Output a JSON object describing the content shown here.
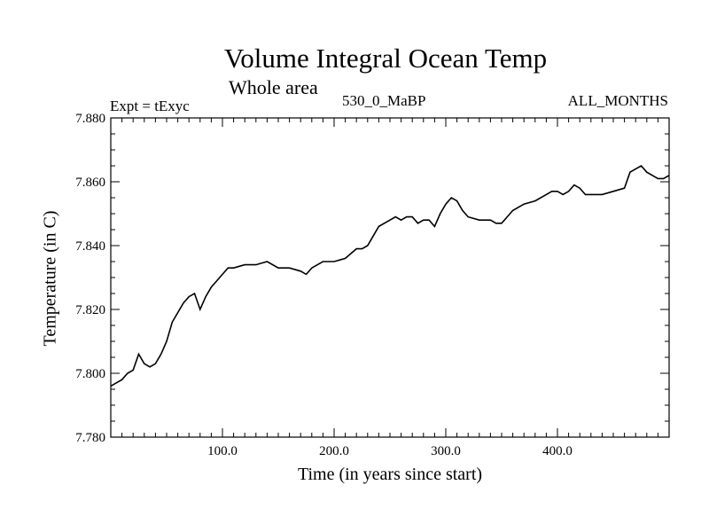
{
  "chart_data": {
    "type": "line",
    "title": "Volume Integral Ocean Temp",
    "subtitle": "Whole area",
    "annotations": {
      "left": "Expt = tExyc",
      "center": "530_0_MaBP",
      "right": "ALL_MONTHS"
    },
    "xlabel": "Time (in years since start)",
    "ylabel": "Temperature (in C)",
    "xlim": [
      0,
      500
    ],
    "ylim": [
      7.78,
      7.88
    ],
    "x_ticks": [
      100,
      200,
      300,
      400
    ],
    "x_tick_labels": [
      "100.0",
      "200.0",
      "300.0",
      "400.0"
    ],
    "y_ticks": [
      7.78,
      7.8,
      7.82,
      7.84,
      7.86,
      7.88
    ],
    "y_tick_labels": [
      "7.780",
      "7.800",
      "7.820",
      "7.840",
      "7.860",
      "7.880"
    ],
    "grid": false,
    "series": [
      {
        "color": "#000000",
        "x": [
          0,
          5,
          10,
          15,
          20,
          25,
          30,
          35,
          40,
          45,
          50,
          55,
          60,
          65,
          70,
          75,
          80,
          85,
          90,
          95,
          100,
          105,
          110,
          120,
          130,
          140,
          150,
          160,
          170,
          175,
          180,
          190,
          200,
          210,
          220,
          225,
          230,
          235,
          240,
          250,
          255,
          260,
          265,
          270,
          275,
          280,
          285,
          290,
          295,
          300,
          305,
          310,
          315,
          320,
          330,
          340,
          345,
          350,
          355,
          360,
          365,
          370,
          380,
          390,
          395,
          400,
          405,
          410,
          415,
          420,
          425,
          430,
          440,
          450,
          460,
          465,
          470,
          475,
          480,
          485,
          490,
          495,
          500
        ],
        "values": [
          7.796,
          7.797,
          7.798,
          7.8,
          7.801,
          7.806,
          7.803,
          7.802,
          7.803,
          7.806,
          7.81,
          7.816,
          7.819,
          7.822,
          7.824,
          7.825,
          7.82,
          7.824,
          7.827,
          7.829,
          7.831,
          7.833,
          7.833,
          7.834,
          7.834,
          7.835,
          7.833,
          7.833,
          7.832,
          7.831,
          7.833,
          7.835,
          7.835,
          7.836,
          7.839,
          7.839,
          7.84,
          7.843,
          7.846,
          7.848,
          7.849,
          7.848,
          7.849,
          7.849,
          7.847,
          7.848,
          7.848,
          7.846,
          7.85,
          7.853,
          7.855,
          7.854,
          7.851,
          7.849,
          7.848,
          7.848,
          7.847,
          7.847,
          7.849,
          7.851,
          7.852,
          7.853,
          7.854,
          7.856,
          7.857,
          7.857,
          7.856,
          7.857,
          7.859,
          7.858,
          7.856,
          7.856,
          7.856,
          7.857,
          7.858,
          7.863,
          7.864,
          7.865,
          7.863,
          7.862,
          7.861,
          7.861,
          7.862
        ]
      }
    ]
  }
}
